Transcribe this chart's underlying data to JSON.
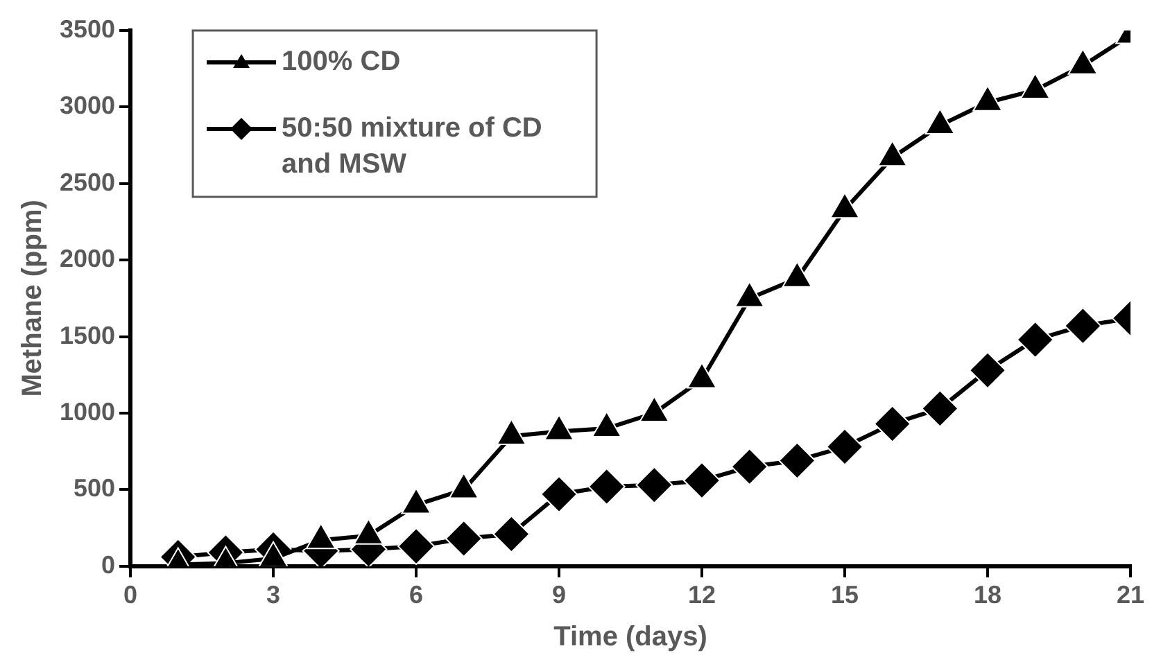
{
  "chart_data": {
    "type": "line",
    "xlabel": "Time (days)",
    "ylabel": "Methane (ppm)",
    "x": [
      1,
      2,
      3,
      4,
      5,
      6,
      7,
      8,
      9,
      10,
      11,
      12,
      13,
      14,
      15,
      16,
      17,
      18,
      19,
      20,
      21
    ],
    "xlim": [
      0,
      21
    ],
    "xticks": [
      0,
      3,
      6,
      9,
      12,
      15,
      18,
      21
    ],
    "ylim": [
      0,
      3500
    ],
    "yticks": [
      0,
      500,
      1000,
      1500,
      2000,
      2500,
      3000,
      3500
    ],
    "grid": false,
    "legend": "top left",
    "line_style": "solid",
    "series": [
      {
        "name": "100% CD",
        "color": "#000000",
        "marker": "triangle",
        "values": [
          10,
          20,
          50,
          170,
          200,
          400,
          500,
          850,
          880,
          900,
          1000,
          1220,
          1750,
          1880,
          2330,
          2670,
          2880,
          3030,
          3110,
          3270,
          3470
        ]
      },
      {
        "name": "50:50 mixture of CD and MSW",
        "color": "#000000",
        "marker": "diamond",
        "values": [
          60,
          90,
          110,
          100,
          110,
          130,
          180,
          210,
          470,
          520,
          530,
          560,
          650,
          690,
          780,
          930,
          1030,
          1280,
          1480,
          1570,
          1620
        ]
      }
    ]
  }
}
